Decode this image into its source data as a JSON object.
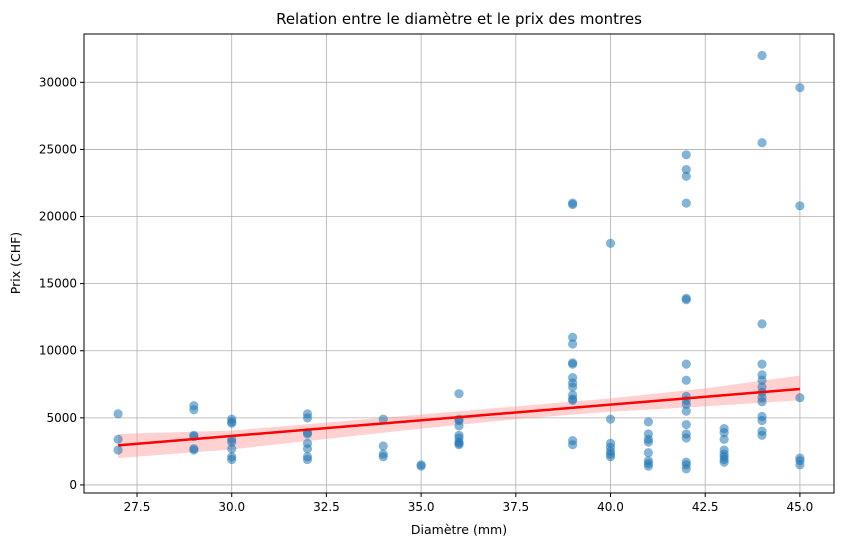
{
  "chart_data": {
    "type": "scatter",
    "title": "Relation entre le diamètre et le prix des montres",
    "xlabel": "Diamètre (mm)",
    "ylabel": "Prix (CHF)",
    "xlim": [
      26.1,
      45.9
    ],
    "ylim": [
      -600,
      33600
    ],
    "xticks": [
      "27.5",
      "30.0",
      "32.5",
      "35.0",
      "37.5",
      "40.0",
      "42.5",
      "45.0"
    ],
    "yticks": [
      "0",
      "5000",
      "10000",
      "15000",
      "20000",
      "25000",
      "30000"
    ],
    "grid": true,
    "colors": {
      "points": "#1f77b4",
      "regression_line": "#ff0000",
      "confidence_band": "#ff9999",
      "grid": "#b0b0b0"
    },
    "series": [
      {
        "kind": "scatter",
        "points": [
          [
            27,
            5300
          ],
          [
            27,
            3400
          ],
          [
            27,
            2600
          ],
          [
            29,
            5900
          ],
          [
            29,
            5600
          ],
          [
            29,
            3700
          ],
          [
            29,
            3600
          ],
          [
            29,
            2700
          ],
          [
            29,
            2600
          ],
          [
            30,
            4900
          ],
          [
            30,
            4700
          ],
          [
            30,
            4600
          ],
          [
            30,
            3400
          ],
          [
            30,
            3200
          ],
          [
            30,
            2700
          ],
          [
            30,
            2100
          ],
          [
            30,
            1900
          ],
          [
            32,
            5300
          ],
          [
            32,
            5000
          ],
          [
            32,
            3900
          ],
          [
            32,
            3800
          ],
          [
            32,
            3100
          ],
          [
            32,
            2700
          ],
          [
            32,
            2100
          ],
          [
            32,
            1900
          ],
          [
            34,
            4900
          ],
          [
            34,
            2900
          ],
          [
            34,
            2300
          ],
          [
            34,
            2100
          ],
          [
            35,
            1500
          ],
          [
            35,
            1400
          ],
          [
            36,
            6800
          ],
          [
            36,
            4900
          ],
          [
            36,
            4800
          ],
          [
            36,
            4400
          ],
          [
            36,
            3700
          ],
          [
            36,
            3500
          ],
          [
            36,
            3200
          ],
          [
            36,
            3100
          ],
          [
            36,
            3000
          ],
          [
            39,
            21000
          ],
          [
            39,
            20900
          ],
          [
            39,
            11000
          ],
          [
            39,
            10500
          ],
          [
            39,
            9100
          ],
          [
            39,
            9000
          ],
          [
            39,
            8000
          ],
          [
            39,
            7600
          ],
          [
            39,
            7300
          ],
          [
            39,
            6700
          ],
          [
            39,
            6400
          ],
          [
            39,
            6300
          ],
          [
            39,
            3300
          ],
          [
            39,
            3000
          ],
          [
            40,
            18000
          ],
          [
            40,
            4900
          ],
          [
            40,
            3100
          ],
          [
            40,
            2800
          ],
          [
            40,
            2500
          ],
          [
            40,
            2300
          ],
          [
            40,
            2100
          ],
          [
            41,
            4700
          ],
          [
            41,
            3800
          ],
          [
            41,
            3400
          ],
          [
            41,
            3200
          ],
          [
            41,
            2400
          ],
          [
            41,
            1800
          ],
          [
            41,
            1600
          ],
          [
            41,
            1400
          ],
          [
            42,
            24600
          ],
          [
            42,
            23500
          ],
          [
            42,
            23000
          ],
          [
            42,
            21000
          ],
          [
            42,
            13900
          ],
          [
            42,
            13800
          ],
          [
            42,
            9000
          ],
          [
            42,
            7800
          ],
          [
            42,
            6600
          ],
          [
            42,
            6300
          ],
          [
            42,
            6000
          ],
          [
            42,
            5500
          ],
          [
            42,
            4500
          ],
          [
            42,
            3800
          ],
          [
            42,
            3500
          ],
          [
            42,
            1700
          ],
          [
            42,
            1500
          ],
          [
            42,
            1200
          ],
          [
            43,
            4200
          ],
          [
            43,
            3900
          ],
          [
            43,
            3400
          ],
          [
            43,
            2600
          ],
          [
            43,
            2300
          ],
          [
            43,
            2100
          ],
          [
            43,
            1900
          ],
          [
            43,
            1700
          ],
          [
            44,
            32000
          ],
          [
            44,
            25500
          ],
          [
            44,
            12000
          ],
          [
            44,
            9000
          ],
          [
            44,
            8200
          ],
          [
            44,
            7800
          ],
          [
            44,
            7300
          ],
          [
            44,
            6900
          ],
          [
            44,
            6500
          ],
          [
            44,
            6200
          ],
          [
            44,
            5100
          ],
          [
            44,
            4800
          ],
          [
            44,
            4000
          ],
          [
            44,
            3700
          ],
          [
            45,
            29600
          ],
          [
            45,
            20800
          ],
          [
            45,
            6500
          ],
          [
            45,
            2000
          ],
          [
            45,
            1800
          ],
          [
            45,
            1500
          ]
        ]
      },
      {
        "kind": "regression_line",
        "x": [
          27,
          45
        ],
        "y": [
          2950,
          7150
        ]
      },
      {
        "kind": "confidence_band",
        "x": [
          27,
          30,
          35,
          37.5,
          40,
          42.5,
          45
        ],
        "upper": [
          3800,
          4050,
          5250,
          5850,
          6450,
          7200,
          8150
        ],
        "lower": [
          2000,
          2650,
          4200,
          4900,
          5450,
          5850,
          6300
        ]
      }
    ]
  }
}
